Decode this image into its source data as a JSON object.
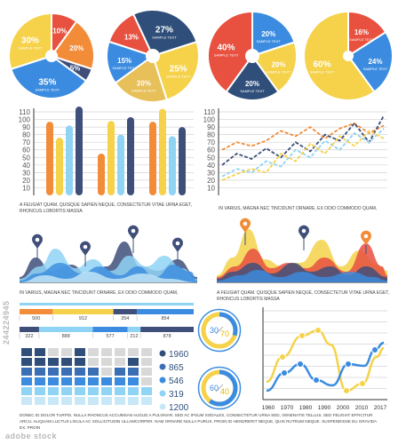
{
  "chart_data": [
    {
      "type": "pie",
      "id": "pie1",
      "values": [
        10,
        20,
        5,
        35,
        30
      ],
      "labels": [
        "10%",
        "20%",
        "5%",
        "35%",
        "30%"
      ],
      "colors": [
        "#e8503f",
        "#f28c38",
        "#3f4f7a",
        "#3b8ce0",
        "#f5d24a"
      ],
      "sublabels": [
        "",
        "",
        "",
        "SAMPLE TEXT",
        "SAMPLE TEXT"
      ]
    },
    {
      "type": "pie",
      "id": "pie2",
      "values": [
        27,
        25,
        20,
        15,
        13
      ],
      "labels": [
        "27%",
        "25%",
        "20%",
        "15%",
        "13%"
      ],
      "colors": [
        "#2f4f7a",
        "#f5d24a",
        "#e8c05a",
        "#3b8ce0",
        "#e8503f"
      ],
      "sublabels": [
        "SAMPLE TEXT",
        "SAMPLE TEXT",
        "SAMPLE TEXT",
        "SAMPLE TEXT",
        ""
      ]
    },
    {
      "type": "pie",
      "id": "pie3",
      "values": [
        20,
        20,
        20,
        40
      ],
      "labels": [
        "20%",
        "20%",
        "20%",
        "40%"
      ],
      "colors": [
        "#3b8ce0",
        "#f5d24a",
        "#2f4f7a",
        "#e8503f"
      ],
      "sublabels": [
        "SAMPLE TEXT",
        "SAMPLE TEXT",
        "SAMPLE TEXT",
        "SAMPLE TEXT"
      ]
    },
    {
      "type": "pie",
      "id": "pie4",
      "values": [
        16,
        24,
        60
      ],
      "labels": [
        "16%",
        "24%",
        "60%"
      ],
      "colors": [
        "#e8503f",
        "#3b8ce0",
        "#f5d24a"
      ],
      "sublabels": [
        "SAMPLE TEXT",
        "SAMPLE TEXT",
        "SAMPLE TEXT"
      ]
    },
    {
      "type": "bar",
      "id": "bars",
      "ylim": [
        0,
        110
      ],
      "yticks": [
        10,
        20,
        30,
        40,
        50,
        60,
        70,
        80,
        90,
        100,
        110
      ],
      "groups": [
        [
          97,
          76,
          92,
          117
        ],
        [
          55,
          98,
          80,
          103
        ],
        [
          97,
          114,
          78,
          90
        ]
      ],
      "colors": [
        "#f28c38",
        "#f5d24a",
        "#8fd3f5",
        "#3f4f7a"
      ],
      "caption": "A FEUGIAT QUAM. QUISQUE SAPIEN NEQUE, CONSECTETUR VITAE URNA EGET, RHONCUS LOBORTIS MASSA"
    },
    {
      "type": "line",
      "id": "lines",
      "ylim": [
        0,
        110
      ],
      "yticks": [
        10,
        20,
        30,
        40,
        50,
        60,
        70,
        80,
        90,
        100,
        110
      ],
      "series": [
        {
          "color": "#f28c38",
          "values": [
            60,
            70,
            65,
            72,
            85,
            78,
            90,
            75,
            88,
            95,
            82,
            92
          ]
        },
        {
          "color": "#3f4f7a",
          "values": [
            40,
            55,
            48,
            62,
            50,
            70,
            58,
            80,
            72,
            95,
            70,
            105
          ]
        },
        {
          "color": "#8fd3f5",
          "values": [
            25,
            35,
            30,
            45,
            38,
            60,
            50,
            72,
            60,
            82,
            70,
            88
          ]
        },
        {
          "color": "#f5d24a",
          "values": [
            20,
            28,
            35,
            30,
            55,
            45,
            68,
            55,
            78,
            65,
            85,
            75
          ]
        }
      ],
      "caption": "IN VARIUS, MAGNA NEC TINCIDUNT ORNARE, EX ODIO COMMODO QUAM,"
    },
    {
      "type": "area",
      "id": "mountains1",
      "caption": "IN VARIUS, MAGNA NEC TINCIDUNT ORNARE, EX ODIO COMMODO QUAM,"
    },
    {
      "type": "area",
      "id": "mountains2",
      "caption": "A FEUGIAT QUAM. QUISQUE SAPIEN NEQUE, CONSECTETUR VITAE URNA EGET, RHONCUS LOBORTIS MASSA"
    },
    {
      "type": "bar",
      "id": "hbars",
      "rows": [
        {
          "values": [
            500,
            912,
            354,
            854
          ],
          "colors": [
            "#f28c38",
            "#f5d24a",
            "#3f4f7a",
            "#3b8ce0"
          ]
        },
        {
          "values": [
            322,
            888,
            577,
            212,
            878
          ],
          "colors": [
            "#3f4f7a",
            "#8fd3f5",
            "#3b8ce0",
            "#8fd3f5",
            "#3f4f7a"
          ]
        }
      ]
    },
    {
      "type": "pie",
      "id": "donut1",
      "values": [
        30,
        70
      ],
      "labels": [
        "30",
        "70"
      ],
      "colors": [
        "#3b8ce0",
        "#f5d24a"
      ]
    },
    {
      "type": "pie",
      "id": "donut2",
      "values": [
        60,
        40
      ],
      "labels": [
        "60",
        "40"
      ],
      "colors": [
        "#3b8ce0",
        "#f5d24a"
      ]
    },
    {
      "type": "table",
      "id": "legend",
      "values": [
        "1960",
        "865",
        "546",
        "319",
        "1200"
      ],
      "colors": [
        "#2f4f7a",
        "#3b6fb5",
        "#3b8ce0",
        "#8fd3f5",
        "#c8e8f8"
      ]
    },
    {
      "type": "line",
      "id": "curves",
      "xticks": [
        "1960",
        "1970",
        "1980",
        "1990",
        "2000",
        "2010",
        "2017"
      ]
    }
  ],
  "footer": {
    "caption": "DONEC ID DOLOR TURPIS. NULLA RHONCUS ACCUMSAN AUGUE A PULVINAR. SED AC IPSUM SODALES, CONSECTETUR URNA SED, VENENATIS TELLUS. SED FEUGIAT EFFICITUR ARCU. ALIQUAM LUCTUS LIGULA AC SOLLICITUDIN ULLAMCORPER. NAM ORNARE NULLA PURUS. PROIN ID HENDRERIT NEQUE, QUIS RUTRUM NEQUE. SUSPENDISSE EU GRAVIDA EX. PROIN"
  },
  "watermark": {
    "side": "244224945",
    "bottom": "adobe stock"
  }
}
